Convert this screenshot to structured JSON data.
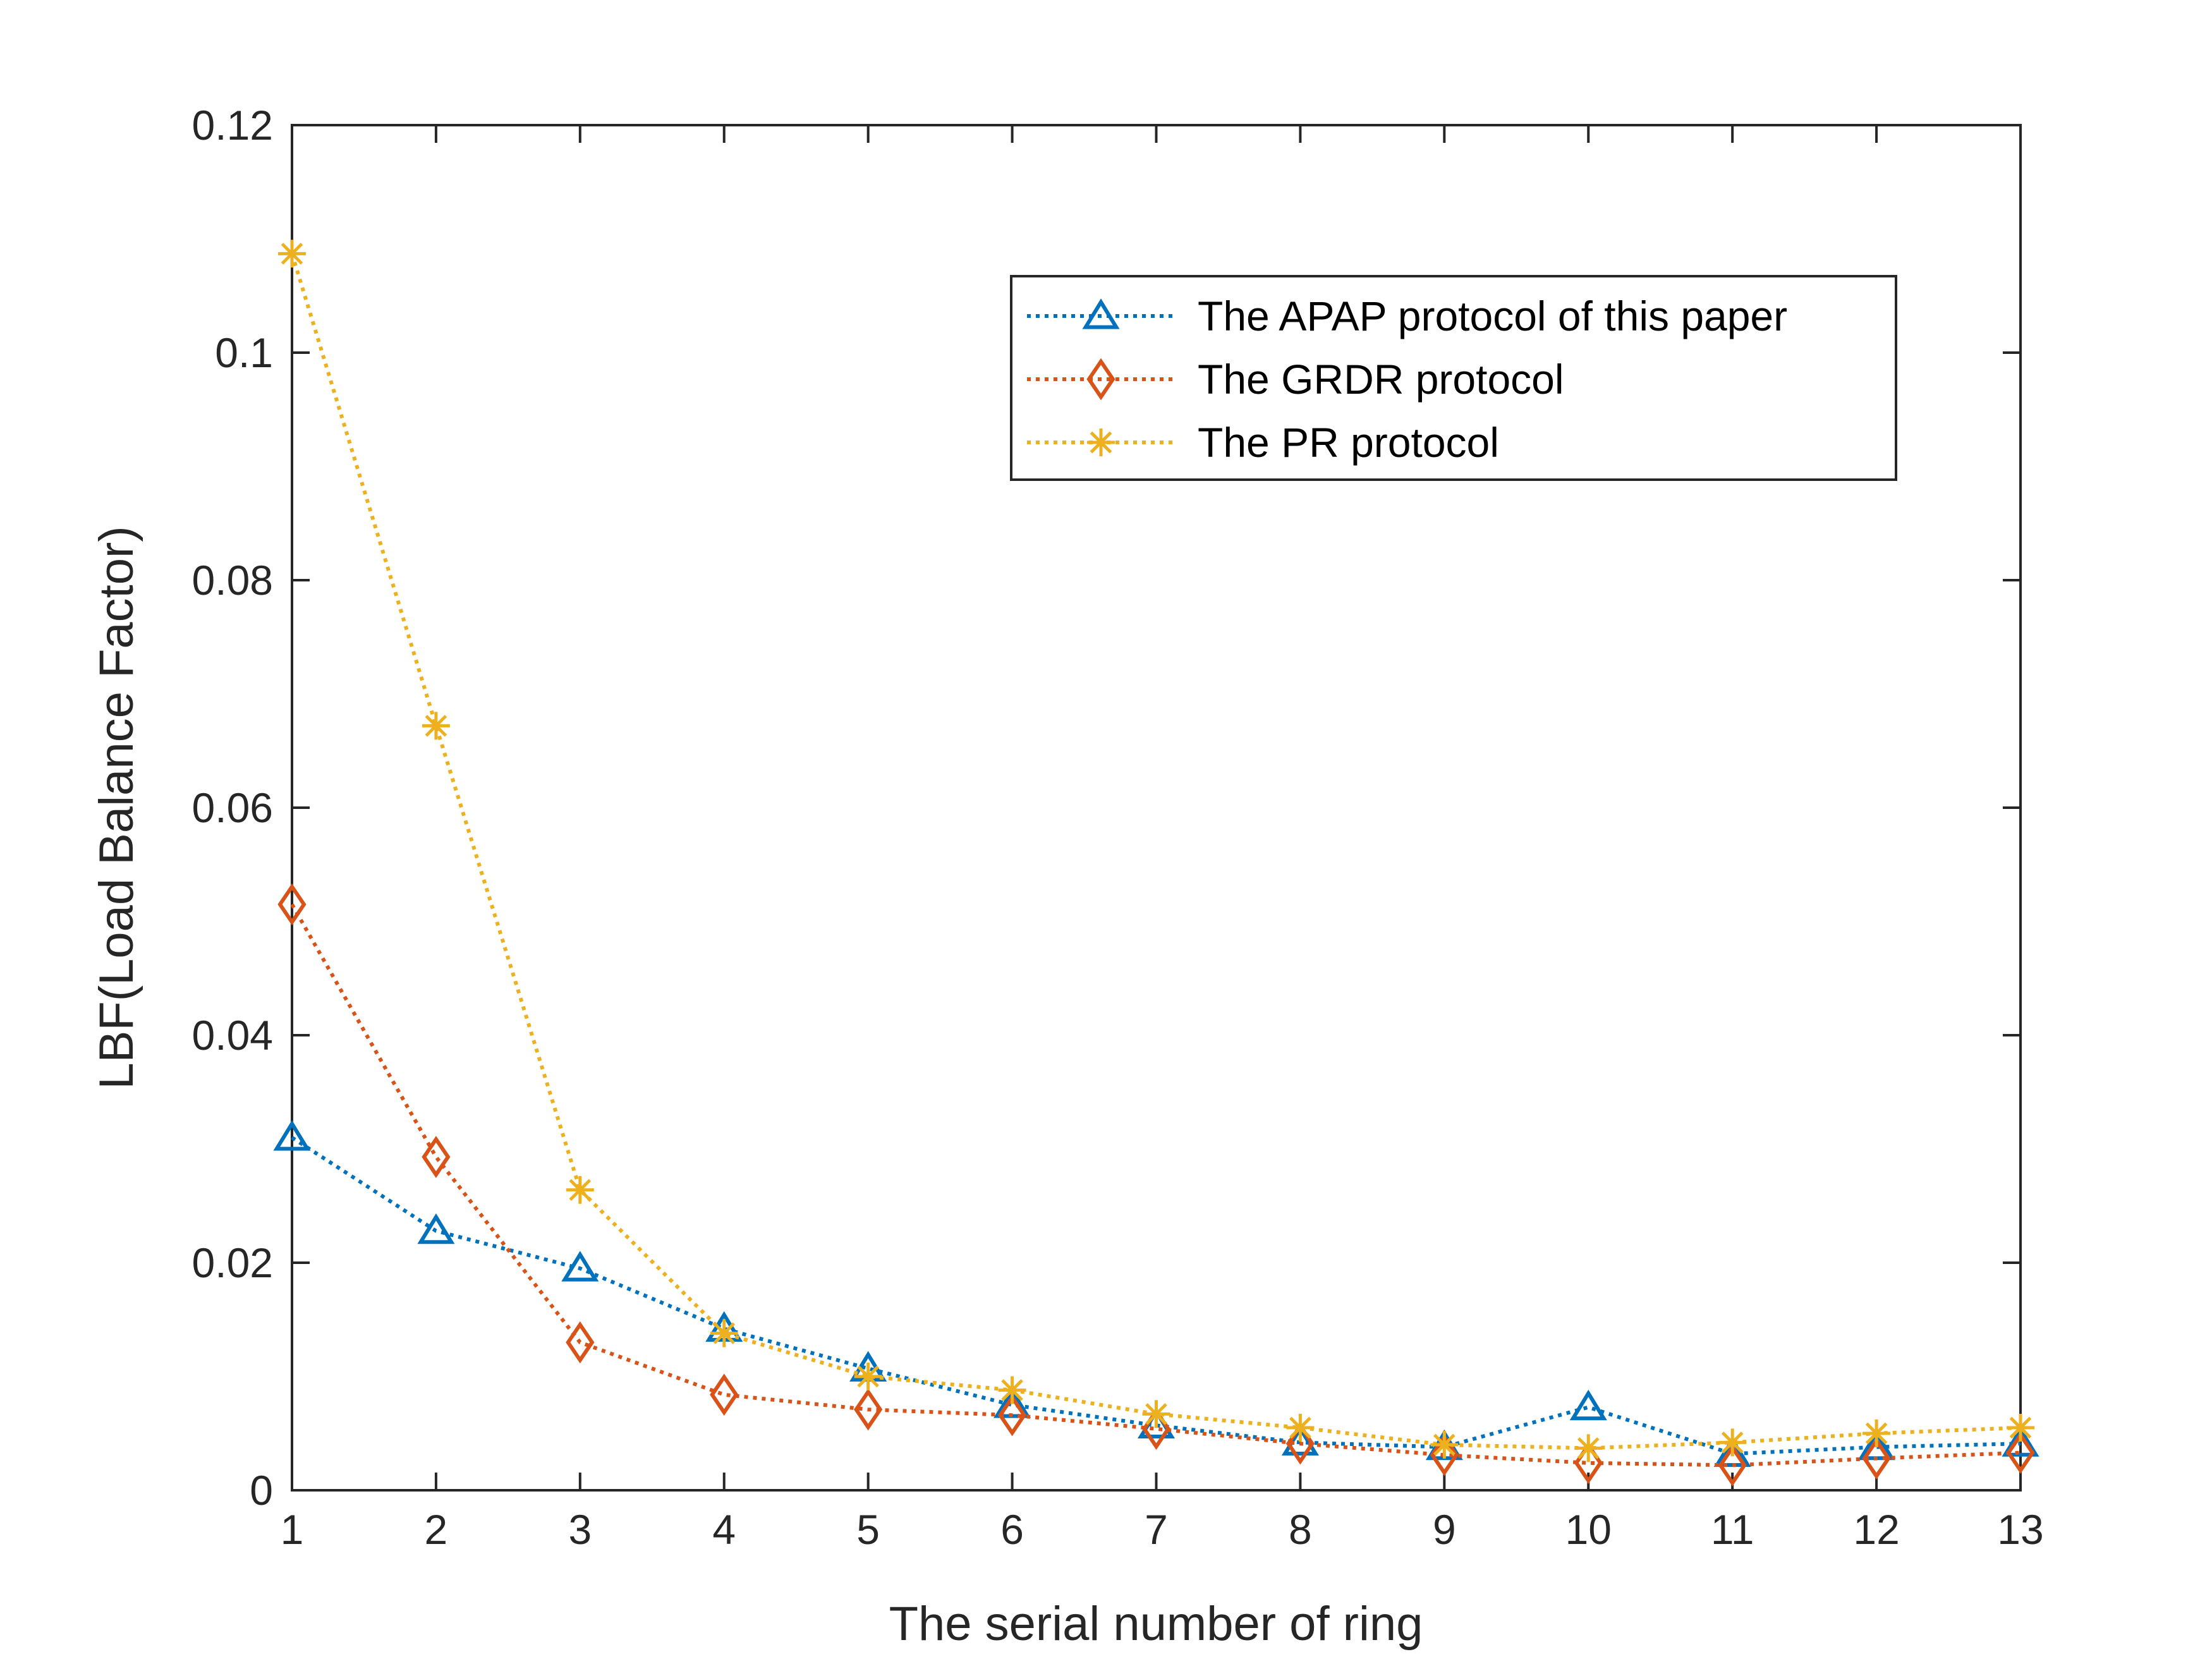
{
  "chart_data": {
    "type": "line",
    "title": "",
    "xlabel": "The serial number of ring",
    "ylabel": "LBF(Load Balance Factor)",
    "xlim": [
      1,
      13
    ],
    "ylim": [
      0,
      0.12
    ],
    "x_ticks": [
      "1",
      "2",
      "3",
      "4",
      "5",
      "6",
      "7",
      "8",
      "9",
      "10",
      "11",
      "12",
      "13"
    ],
    "y_ticks": [
      "0",
      "0.02",
      "0.04",
      "0.06",
      "0.08",
      "0.1",
      "0.12"
    ],
    "grid": false,
    "legend_position": "top-right",
    "x": [
      1,
      2,
      3,
      4,
      5,
      6,
      7,
      8,
      9,
      10,
      11,
      12,
      13
    ],
    "series": [
      {
        "name": "The APAP protocol of this paper",
        "color": "#0072BD",
        "marker": "triangle",
        "line_style": "dotted",
        "values": [
          0.031,
          0.0228,
          0.0195,
          0.0142,
          0.0107,
          0.0075,
          0.0057,
          0.0042,
          0.0038,
          0.0073,
          0.0032,
          0.0038,
          0.0041
        ]
      },
      {
        "name": "The GRDR protocol",
        "color": "#D95319",
        "marker": "diamond",
        "line_style": "dotted",
        "values": [
          0.0515,
          0.0293,
          0.013,
          0.0084,
          0.0071,
          0.0066,
          0.0054,
          0.0041,
          0.0031,
          0.0024,
          0.0022,
          0.0028,
          0.0033
        ]
      },
      {
        "name": "The PR protocol",
        "color": "#EDB120",
        "marker": "asterisk",
        "line_style": "dotted",
        "values": [
          0.1087,
          0.0672,
          0.0264,
          0.0138,
          0.01,
          0.0088,
          0.0067,
          0.0055,
          0.004,
          0.0037,
          0.0042,
          0.005,
          0.0055
        ]
      }
    ]
  }
}
